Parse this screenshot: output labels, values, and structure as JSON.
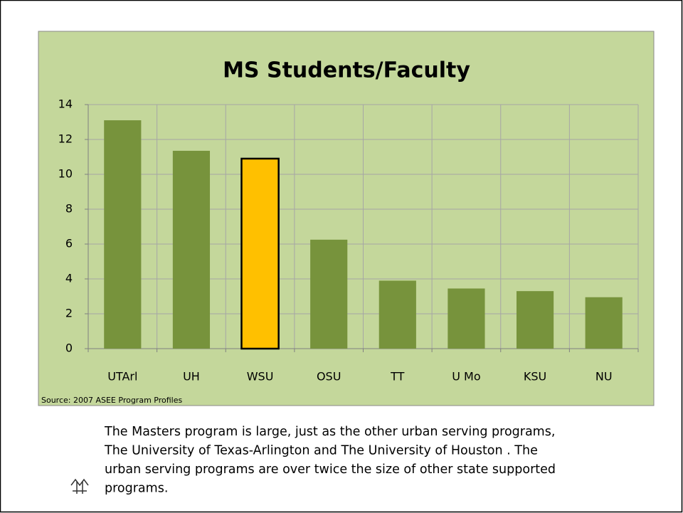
{
  "chart_data": {
    "type": "bar",
    "title": "MS Students/Faculty",
    "categories": [
      "UTArl",
      "UH",
      "WSU",
      "OSU",
      "TT",
      "U Mo",
      "KSU",
      "NU"
    ],
    "values": [
      13.1,
      11.35,
      10.9,
      6.25,
      3.9,
      3.45,
      3.3,
      2.95
    ],
    "colors": [
      "#77933c",
      "#77933c",
      "#ffc000",
      "#77933c",
      "#77933c",
      "#77933c",
      "#77933c",
      "#77933c"
    ],
    "ylim": [
      0,
      14
    ],
    "yticks": [
      0,
      2,
      4,
      6,
      8,
      10,
      12,
      14
    ],
    "grid": true,
    "source": "Source: 2007 ASEE Program Profiles"
  },
  "body": [
    "The Masters program is large, just as the other urban serving programs,",
    "The University of Texas-Arlington and The University of Houston .  The",
    "urban serving programs are over twice the size of other state supported",
    "programs."
  ]
}
